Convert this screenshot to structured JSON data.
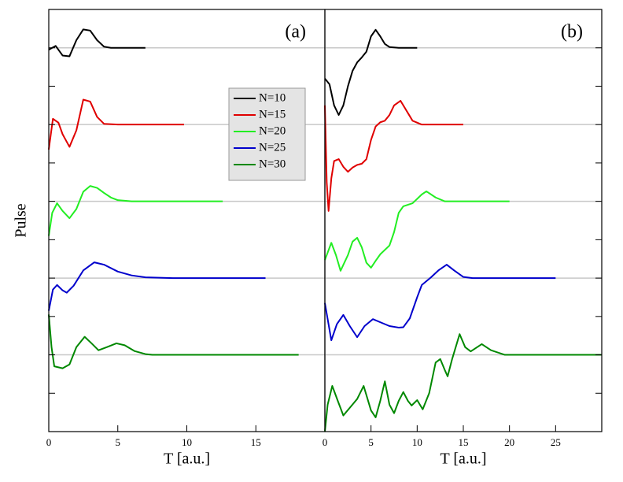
{
  "chart_data": [
    {
      "type": "line",
      "annotation": "(a)",
      "xlabel": "T [a.u.]",
      "ylabel": "Pulse",
      "xlim": [
        0,
        20
      ],
      "xticks": [
        0,
        5,
        10,
        15
      ],
      "ylim": [
        0,
        11
      ],
      "yticks": [
        1,
        2,
        3,
        4,
        5,
        6,
        7,
        8,
        9,
        10
      ],
      "hlines": [
        2,
        4,
        6,
        8,
        10
      ],
      "series": [
        {
          "name": "N=10",
          "color": "#000000",
          "x": [
            0,
            0.5,
            1,
            1.5,
            2,
            2.5,
            3,
            3.5,
            4,
            4.5,
            5,
            6,
            7
          ],
          "values": [
            9.95,
            10.05,
            9.8,
            9.78,
            10.2,
            10.48,
            10.45,
            10.2,
            10.03,
            10,
            10,
            10,
            10
          ]
        },
        {
          "name": "N=15",
          "color": "#e00000",
          "x": [
            0,
            0.3,
            0.7,
            1,
            1.5,
            2,
            2.5,
            3,
            3.5,
            4,
            5,
            7,
            9.8
          ],
          "values": [
            7.35,
            8.15,
            8.05,
            7.75,
            7.42,
            7.85,
            8.65,
            8.6,
            8.2,
            8.02,
            8,
            8,
            8
          ]
        },
        {
          "name": "N=20",
          "color": "#22ee22",
          "x": [
            0,
            0.25,
            0.6,
            1,
            1.5,
            2,
            2.5,
            3,
            3.5,
            4,
            4.5,
            5,
            6,
            8,
            12.6
          ],
          "values": [
            5.1,
            5.7,
            5.95,
            5.75,
            5.56,
            5.8,
            6.25,
            6.4,
            6.35,
            6.22,
            6.1,
            6.03,
            6,
            6,
            6
          ]
        },
        {
          "name": "N=25",
          "color": "#0000cc",
          "x": [
            0,
            0.3,
            0.6,
            1,
            1.3,
            1.8,
            2.5,
            3.3,
            4,
            5,
            6,
            7,
            9,
            15.7
          ],
          "values": [
            3.15,
            3.7,
            3.82,
            3.68,
            3.62,
            3.8,
            4.2,
            4.41,
            4.35,
            4.17,
            4.07,
            4.02,
            4,
            4
          ]
        },
        {
          "name": "N=30",
          "color": "#008800",
          "x": [
            0,
            0.2,
            0.4,
            1,
            1.5,
            2,
            2.6,
            3.1,
            3.6,
            4.2,
            4.9,
            5.5,
            6.2,
            7,
            7.5,
            10,
            18.1
          ],
          "values": [
            3.05,
            2.2,
            1.7,
            1.65,
            1.75,
            2.2,
            2.47,
            2.3,
            2.12,
            2.2,
            2.3,
            2.25,
            2.1,
            2.02,
            2,
            2,
            2
          ]
        }
      ]
    },
    {
      "type": "line",
      "annotation": "(b)",
      "xlabel": "T [a.u.]",
      "xlim": [
        0,
        30
      ],
      "xticks": [
        0,
        5,
        10,
        15,
        20,
        25
      ],
      "ylim": [
        0,
        11
      ],
      "yticks": [
        1,
        2,
        3,
        4,
        5,
        6,
        7,
        8,
        9,
        10
      ],
      "hlines": [
        2,
        4,
        6,
        8,
        10
      ],
      "series": [
        {
          "color": "#000000",
          "x": [
            0,
            0.5,
            1,
            1.5,
            2,
            2.5,
            3,
            3.5,
            4,
            4.5,
            5,
            5.5,
            6,
            6.5,
            7,
            8,
            10
          ],
          "values": [
            9.2,
            9.05,
            8.5,
            8.25,
            8.5,
            9.0,
            9.4,
            9.62,
            9.75,
            9.9,
            10.3,
            10.47,
            10.3,
            10.1,
            10.02,
            10,
            10
          ]
        },
        {
          "color": "#e00000",
          "x": [
            0,
            0.2,
            0.4,
            0.7,
            1,
            1.5,
            2,
            2.5,
            3,
            3.5,
            4,
            4.5,
            5,
            5.5,
            6,
            6.5,
            7,
            7.5,
            8.2,
            9,
            9.5,
            10.5,
            15
          ],
          "values": [
            8.5,
            6.5,
            5.75,
            6.6,
            7.05,
            7.1,
            6.9,
            6.77,
            6.88,
            6.95,
            6.98,
            7.1,
            7.6,
            7.95,
            8.06,
            8.1,
            8.25,
            8.5,
            8.62,
            8.3,
            8.1,
            8,
            8
          ]
        },
        {
          "color": "#22ee22",
          "x": [
            0,
            0.7,
            1.2,
            1.7,
            2.5,
            3,
            3.5,
            4,
            4.5,
            5,
            5.5,
            6,
            7,
            7.5,
            8,
            8.5,
            9.5,
            10.5,
            11,
            12,
            13,
            20
          ],
          "values": [
            4.47,
            4.92,
            4.6,
            4.19,
            4.6,
            4.95,
            5.05,
            4.8,
            4.4,
            4.27,
            4.45,
            4.62,
            4.85,
            5.2,
            5.7,
            5.87,
            5.95,
            6.18,
            6.26,
            6.1,
            6,
            6
          ]
        },
        {
          "color": "#0000cc",
          "x": [
            0,
            0.7,
            1.3,
            2,
            2.7,
            3.5,
            4.3,
            5.2,
            6,
            7,
            8,
            8.5,
            9.2,
            10,
            10.5,
            11.5,
            12.3,
            13.2,
            14,
            15,
            16,
            25
          ],
          "values": [
            3.35,
            2.38,
            2.8,
            3.04,
            2.75,
            2.46,
            2.75,
            2.93,
            2.85,
            2.75,
            2.71,
            2.72,
            2.95,
            3.5,
            3.82,
            4.02,
            4.2,
            4.35,
            4.2,
            4.03,
            4,
            4
          ]
        },
        {
          "color": "#008800",
          "x": [
            0,
            0.3,
            0.8,
            1.4,
            2,
            2.8,
            3.5,
            4.2,
            5,
            5.5,
            6,
            6.5,
            7,
            7.5,
            8,
            8.5,
            9,
            9.4,
            10,
            10.6,
            11.3,
            12,
            12.5,
            13,
            13.3,
            13.8,
            14.6,
            15.2,
            15.8,
            17,
            18,
            19.5,
            30
          ],
          "values": [
            0,
            0.7,
            1.19,
            0.8,
            0.42,
            0.65,
            0.85,
            1.19,
            0.55,
            0.37,
            0.8,
            1.31,
            0.7,
            0.48,
            0.8,
            1.03,
            0.8,
            0.68,
            0.82,
            0.58,
            1.0,
            1.8,
            1.89,
            1.6,
            1.44,
            1.9,
            2.54,
            2.2,
            2.09,
            2.28,
            2.12,
            2,
            2
          ]
        }
      ]
    }
  ]
}
